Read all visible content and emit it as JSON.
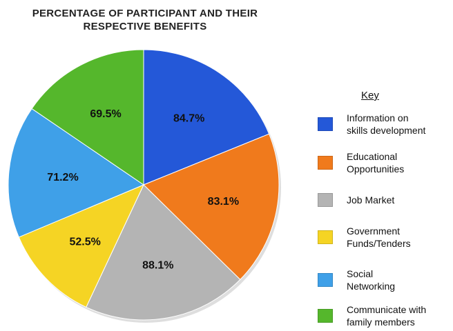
{
  "chart_data": {
    "type": "pie",
    "title_lines": [
      "PERCENTAGE OF PARTICIPANT AND THEIR",
      "RESPECTIVE BENEFITS"
    ],
    "legend_title": "Key",
    "slices": [
      {
        "label_lines": [
          "Information on",
          "skills development"
        ],
        "value": 84.7,
        "display": "84.7%",
        "color": "#2458d8"
      },
      {
        "label_lines": [
          "Educational",
          "Opportunities"
        ],
        "value": 83.1,
        "display": "83.1%",
        "color": "#f07a1c"
      },
      {
        "label_lines": [
          "Job Market"
        ],
        "value": 88.1,
        "display": "88.1%",
        "color": "#b4b4b4"
      },
      {
        "label_lines": [
          "Government",
          "Funds/Tenders"
        ],
        "value": 52.5,
        "display": "52.5%",
        "color": "#f5d424"
      },
      {
        "label_lines": [
          "Social",
          "Networking"
        ],
        "value": 71.2,
        "display": "71.2%",
        "color": "#3fa0e8"
      },
      {
        "label_lines": [
          "Communicate with",
          "family members"
        ],
        "value": 69.5,
        "display": "69.5%",
        "color": "#55b72c"
      }
    ],
    "legend_placement": "right"
  }
}
